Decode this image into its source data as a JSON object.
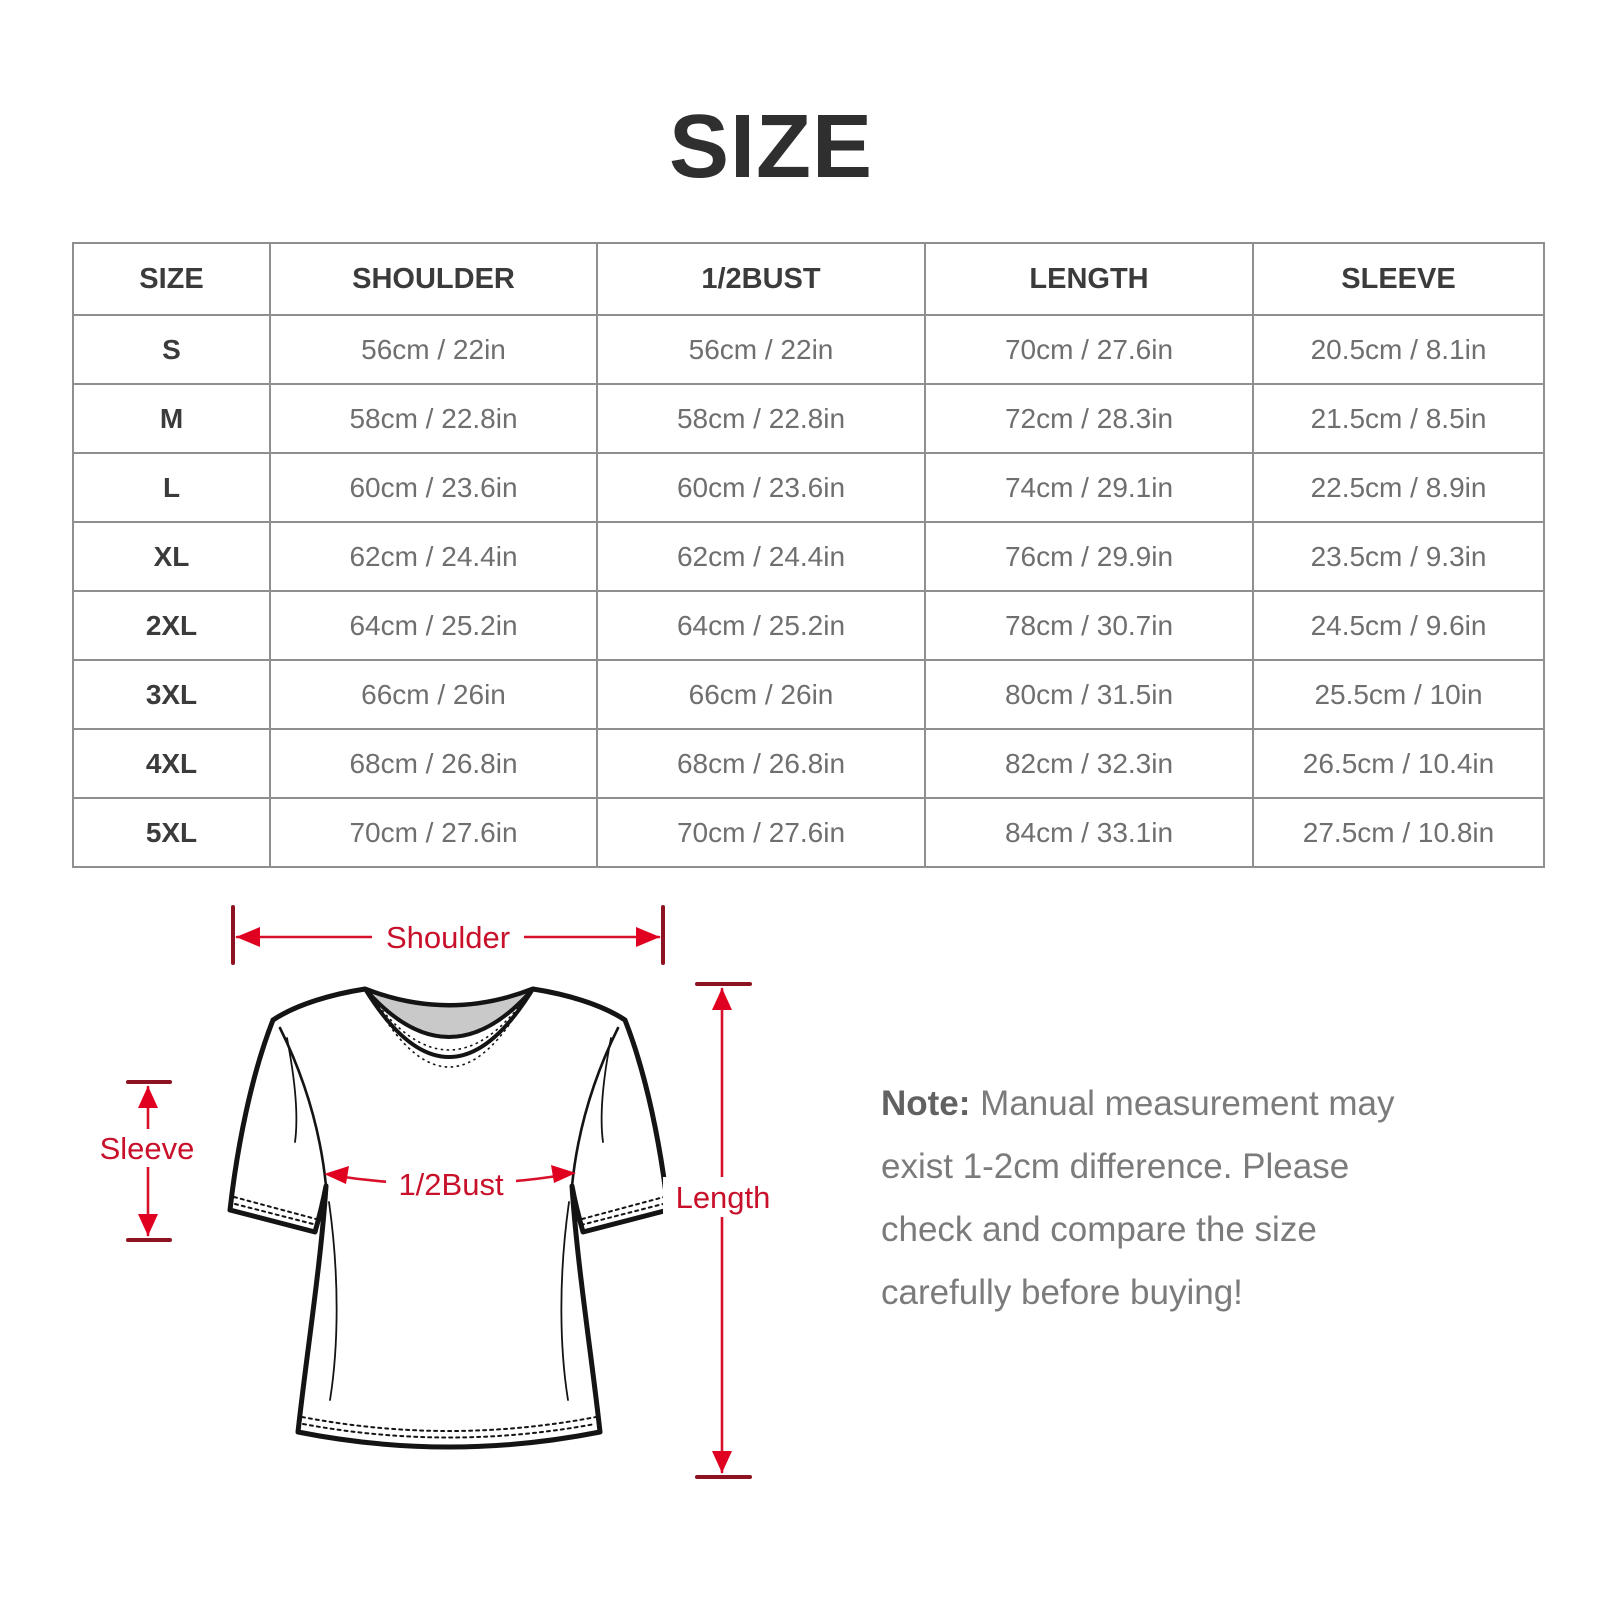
{
  "page": {
    "title": "SIZE"
  },
  "table": {
    "headers": [
      "SIZE",
      "SHOULDER",
      "1/2BUST",
      "LENGTH",
      "SLEEVE"
    ],
    "rows": [
      [
        "S",
        "56cm / 22in",
        "56cm / 22in",
        "70cm / 27.6in",
        "20.5cm / 8.1in"
      ],
      [
        "M",
        "58cm / 22.8in",
        "58cm / 22.8in",
        "72cm / 28.3in",
        "21.5cm / 8.5in"
      ],
      [
        "L",
        "60cm / 23.6in",
        "60cm / 23.6in",
        "74cm / 29.1in",
        "22.5cm / 8.9in"
      ],
      [
        "XL",
        "62cm / 24.4in",
        "62cm / 24.4in",
        "76cm / 29.9in",
        "23.5cm / 9.3in"
      ],
      [
        "2XL",
        "64cm / 25.2in",
        "64cm / 25.2in",
        "78cm / 30.7in",
        "24.5cm / 9.6in"
      ],
      [
        "3XL",
        "66cm / 26in",
        "66cm / 26in",
        "80cm / 31.5in",
        "25.5cm / 10in"
      ],
      [
        "4XL",
        "68cm / 26.8in",
        "68cm / 26.8in",
        "82cm / 32.3in",
        "26.5cm / 10.4in"
      ],
      [
        "5XL",
        "70cm / 27.6in",
        "70cm / 27.6in",
        "84cm / 33.1in",
        "27.5cm / 10.8in"
      ]
    ]
  },
  "diagram": {
    "labels": {
      "shoulder": "Shoulder",
      "sleeve": "Sleeve",
      "bust": "1/2Bust",
      "length": "Length"
    },
    "colors": {
      "measure_line_red": "#d8102a",
      "arrow_red": "#e00020",
      "tick_dark_red": "#8e1322",
      "label_red": "#c8102a",
      "collar_gray": "#c9c9c9",
      "line_art_black": "#141414"
    }
  },
  "note": {
    "label": "Note:",
    "line1": " Manual measurement may",
    "line2": "exist 1-2cm difference. Please",
    "line3": "check and compare the size",
    "line4": "carefully before buying!"
  },
  "colors": {
    "title_text": "#2f2f2f",
    "table_border": "#8f8f8f",
    "header_text": "#3b3b3b",
    "value_text": "#6f6f6f",
    "note_text": "#7b7b7b",
    "background": "#ffffff"
  }
}
